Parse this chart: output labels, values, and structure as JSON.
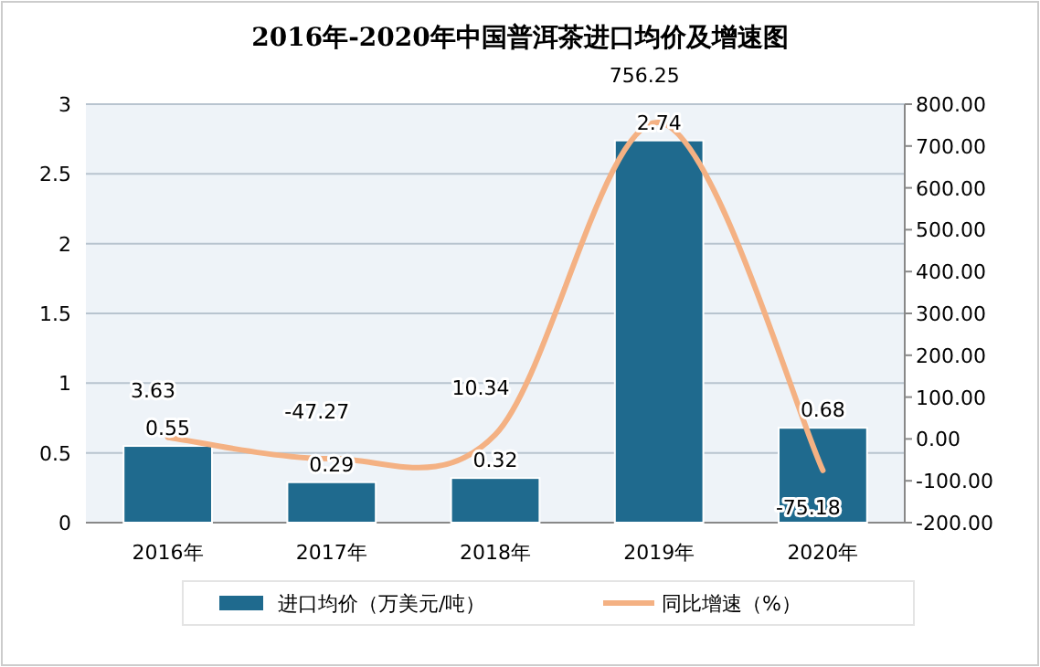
{
  "chart_data": {
    "type": "bar",
    "title": "2016年-2020年中国普洱茶进口均价及增速图",
    "categories": [
      "2016年",
      "2017年",
      "2018年",
      "2019年",
      "2020年"
    ],
    "series": [
      {
        "name": "进口均价（万美元/吨）",
        "type": "bar",
        "color": "#1f6a8e",
        "values": [
          0.55,
          0.29,
          0.32,
          2.74,
          0.68
        ]
      },
      {
        "name": "同比增速（%）",
        "type": "line",
        "axis": "y2",
        "color": "#f4b183",
        "values": [
          3.63,
          -47.27,
          10.34,
          756.25,
          -75.18
        ]
      }
    ],
    "ylim": [
      0,
      3
    ],
    "yticks": [
      0,
      0.5,
      1,
      1.5,
      2,
      2.5,
      3
    ],
    "y2lim": [
      -200,
      800
    ],
    "y2ticks": [
      {
        "value": -200,
        "label": "-200.00"
      },
      {
        "value": -100,
        "label": "-100.00"
      },
      {
        "value": 0,
        "label": "0.00"
      },
      {
        "value": 100,
        "label": "100.00"
      },
      {
        "value": 200,
        "label": "200.00"
      },
      {
        "value": 300,
        "label": "300.00"
      },
      {
        "value": 400,
        "label": "400.00"
      },
      {
        "value": 500,
        "label": "500.00"
      },
      {
        "value": 600,
        "label": "600.00"
      },
      {
        "value": 700,
        "label": "700.00"
      },
      {
        "value": 800,
        "label": "800.00"
      }
    ],
    "grid": "y",
    "legend": "bottom",
    "data_labels": true
  }
}
